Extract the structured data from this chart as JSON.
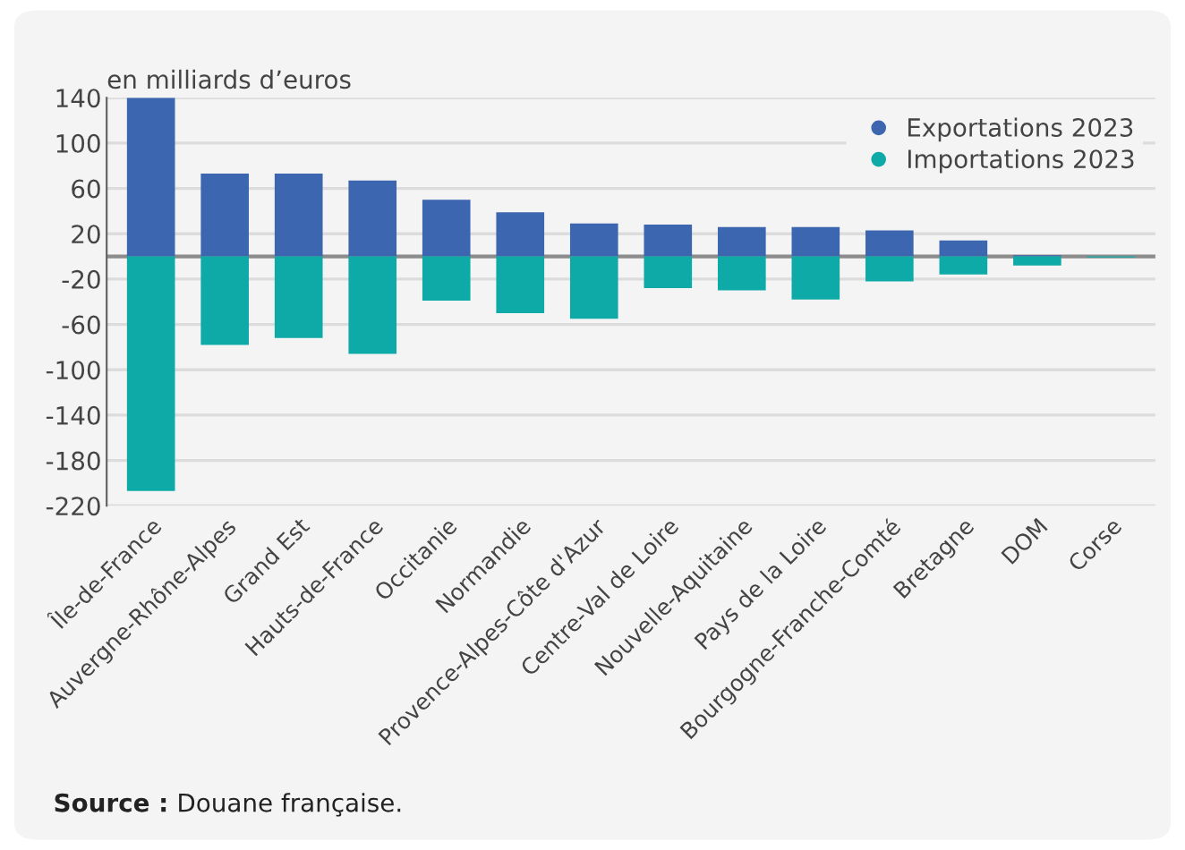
{
  "chart_data": {
    "type": "bar",
    "stacked": true,
    "ylabel": "en milliards d’euros",
    "categories": [
      "Île-de-France",
      "Auvergne-Rhône-Alpes",
      "Grand Est",
      "Hauts-de-France",
      "Occitanie",
      "Normandie",
      "Provence-Alpes-Côte d'Azur",
      "Centre-Val de Loire",
      "Nouvelle-Aquitaine",
      "Pays de la Loire",
      "Bourgogne-Franche-Comté",
      "Bretagne",
      "DOM",
      "Corse"
    ],
    "series": [
      {
        "name": "Exportations 2023",
        "color": "#3d66b0",
        "values": [
          140,
          73,
          73,
          67,
          50,
          39,
          29,
          28,
          26,
          26,
          23,
          14,
          1,
          null
        ]
      },
      {
        "name": "Importations 2023",
        "color": "#0eaaa8",
        "values": [
          -207,
          -78,
          -72,
          -86,
          -39,
          -50,
          -55,
          -28,
          -30,
          -38,
          -22,
          -16,
          -8,
          -1
        ]
      }
    ],
    "ylim": [
      -220,
      140
    ],
    "yticks": [
      140,
      100,
      60,
      20,
      -20,
      -60,
      -100,
      -140,
      -180,
      -220
    ],
    "grid": "y",
    "legend": "top right",
    "ref_lines": [
      {
        "axis": "y",
        "value": 0,
        "color": "#8c8c8c"
      }
    ],
    "annotations": [
      "Source : Douane française."
    ]
  }
}
